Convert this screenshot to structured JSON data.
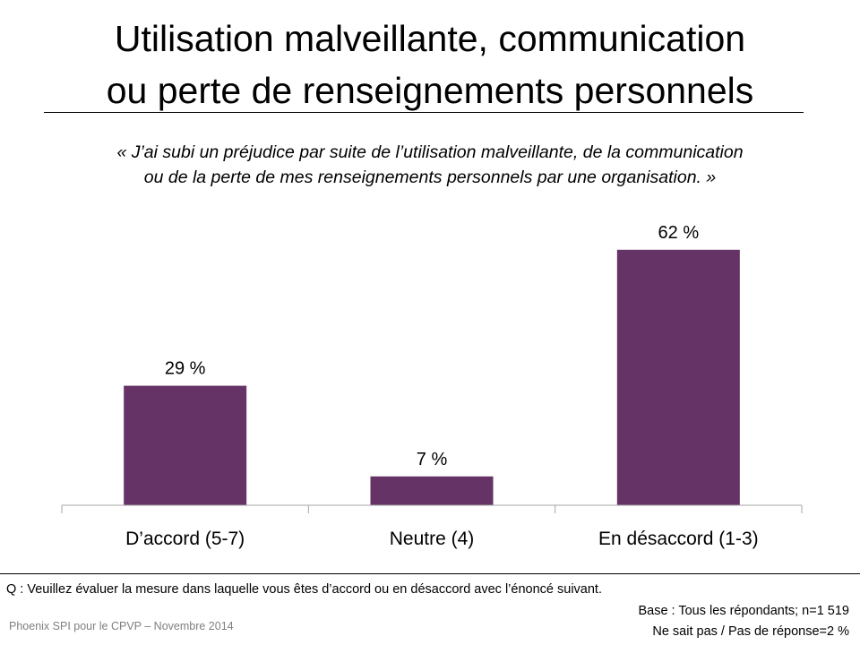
{
  "title_line1": "Utilisation malveillante, communication",
  "title_line2": "ou perte de renseignements personnels",
  "quote_line1": "« J’ai subi un préjudice par suite de l’utilisation malveillante, de la communication",
  "quote_line2": "ou de la perte de mes renseignements personnels par une organisation. »",
  "question": "Q : Veuillez évaluer la mesure dans laquelle vous êtes d’accord ou en désaccord avec l’énoncé suivant.",
  "base_line1": "Base : Tous les répondants; n=1 519",
  "base_line2": "Ne sait pas / Pas de réponse=2 %",
  "source": "Phoenix SPI pour le CPVP – Novembre 2014",
  "colors": {
    "bar": "#663366",
    "axis": "#a6a6a6"
  },
  "chart_data": {
    "type": "bar",
    "categories": [
      "D’accord (5-7)",
      "Neutre (4)",
      "En désaccord (1-3)"
    ],
    "values": [
      29,
      7,
      62
    ],
    "data_labels": [
      "29 %",
      "7 %",
      "62 %"
    ],
    "ylim": [
      0,
      100
    ],
    "grid": false,
    "legend": "none"
  }
}
